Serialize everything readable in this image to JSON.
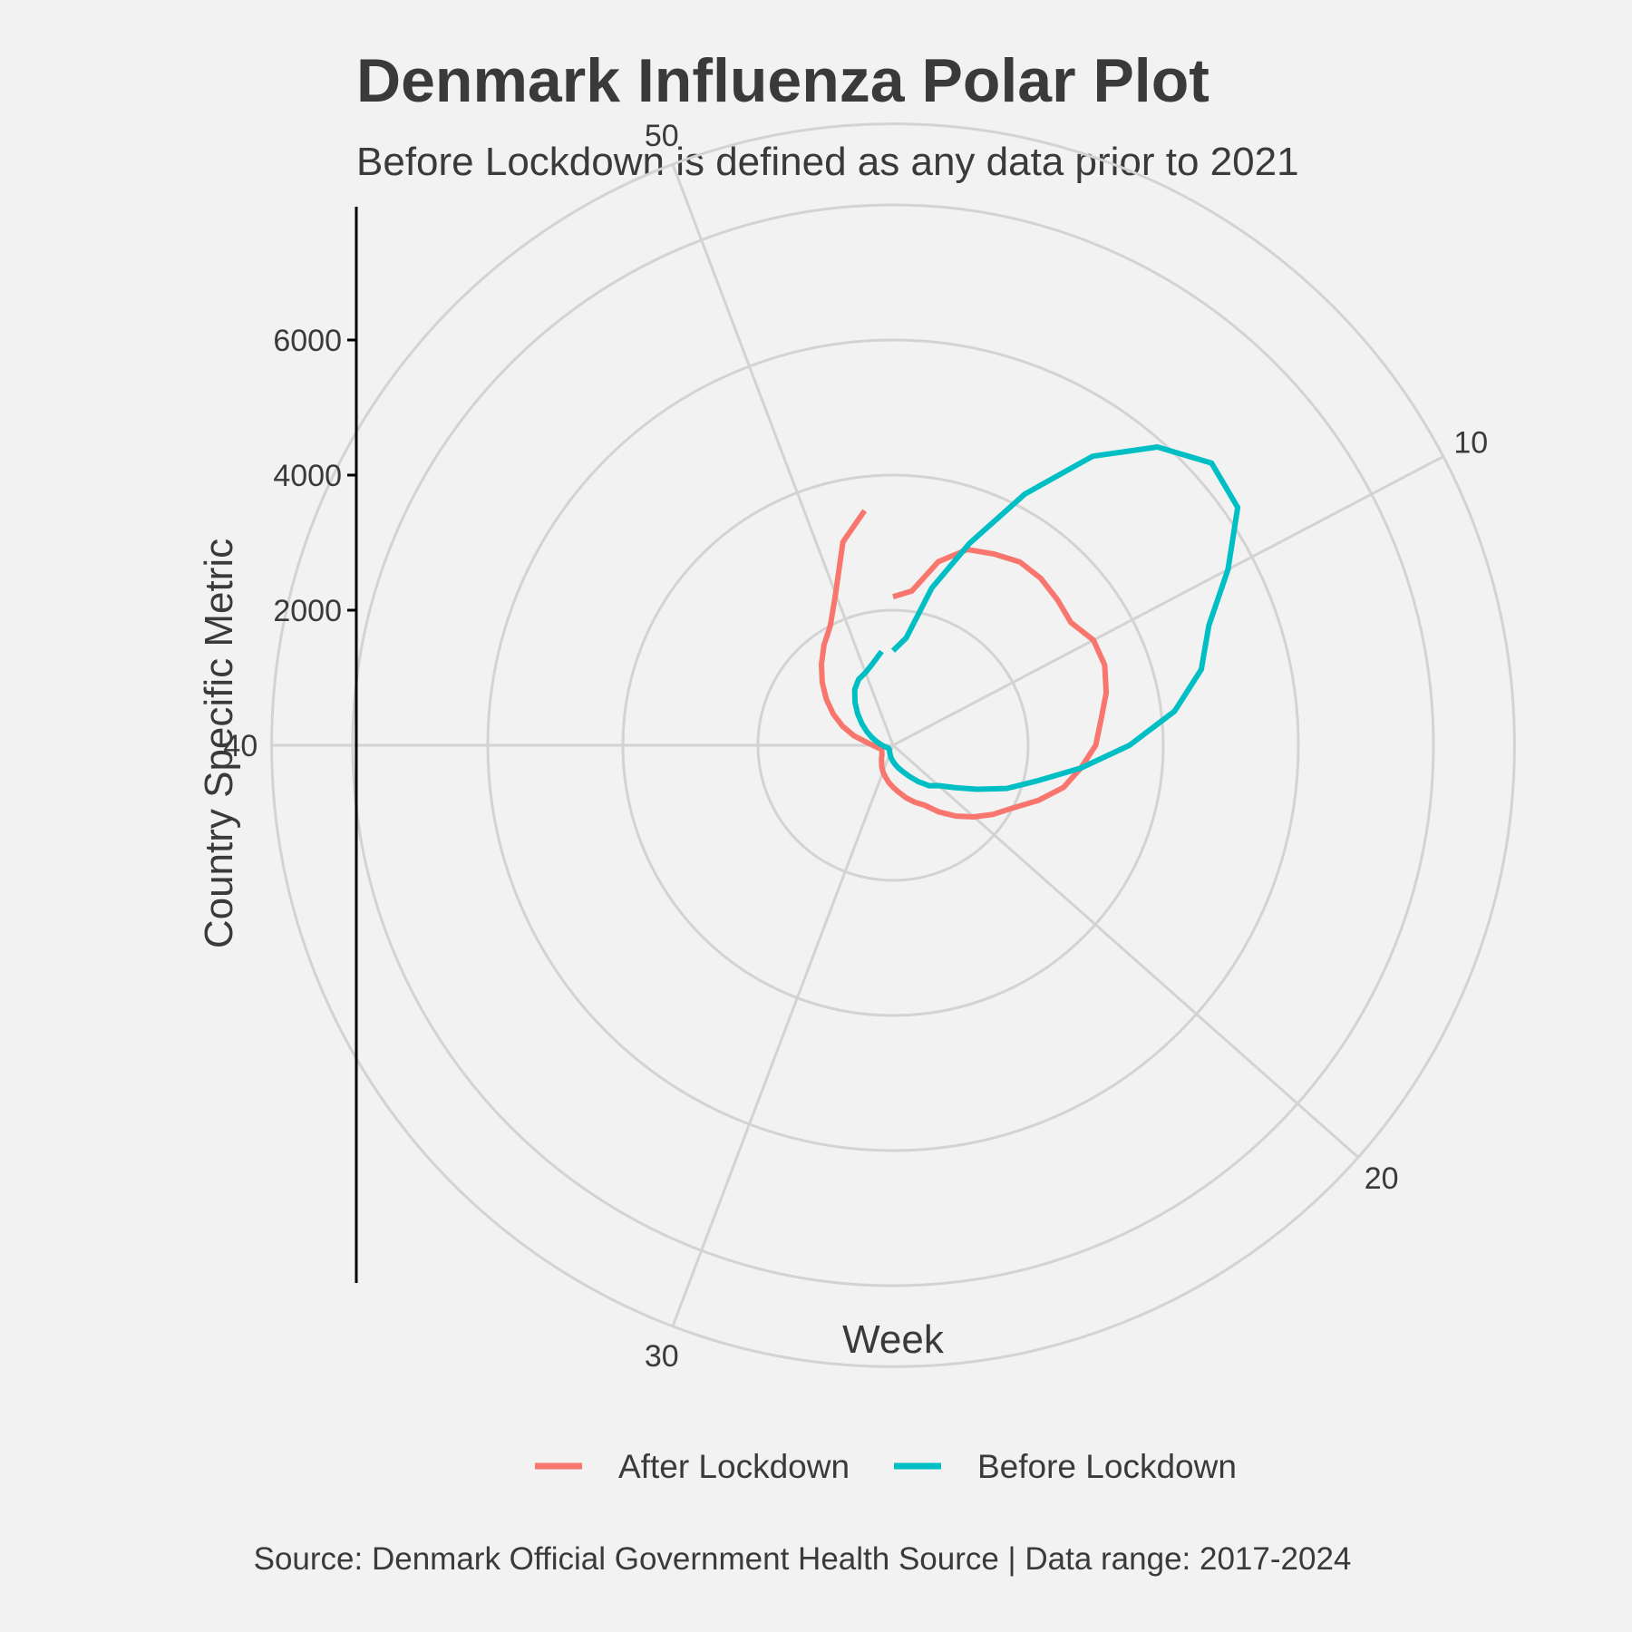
{
  "chart_data": {
    "type": "line",
    "coord": "polar",
    "title": "Denmark Influenza Polar Plot",
    "subtitle": "Before Lockdown is defined as any data prior to 2021",
    "xlabel": "Week",
    "ylabel": "Country Specific Metric",
    "caption": "Source: Denmark Official Government Health Source | Data range: 2017-2024",
    "theta_range": [
      1,
      53
    ],
    "theta_ticks": [
      10,
      20,
      30,
      40,
      50
    ],
    "r_ticks": [
      2000,
      4000,
      6000
    ],
    "r_grid": [
      0,
      2000,
      4000,
      6000,
      8000,
      9200
    ],
    "grid": true,
    "legend_position": "bottom",
    "x": [
      1,
      2,
      3,
      4,
      5,
      6,
      7,
      8,
      9,
      10,
      11,
      12,
      13,
      14,
      15,
      16,
      17,
      18,
      19,
      20,
      21,
      22,
      23,
      24,
      25,
      26,
      27,
      28,
      29,
      30,
      31,
      32,
      33,
      34,
      35,
      36,
      37,
      38,
      39,
      40,
      41,
      42,
      43,
      44,
      45,
      46,
      47,
      48,
      49,
      50,
      51,
      52
    ],
    "series": [
      {
        "name": "After Lockdown",
        "color": "#f8766d",
        "values": [
          2200,
          2300,
          2800,
          3100,
          3200,
          3300,
          3300,
          3250,
          3200,
          3350,
          3350,
          3250,
          3100,
          3000,
          2800,
          2600,
          2300,
          2000,
          1800,
          1600,
          1400,
          1200,
          1000,
          900,
          800,
          700,
          620,
          550,
          480,
          420,
          360,
          300,
          260,
          220,
          200,
          190,
          180,
          200,
          240,
          300,
          400,
          600,
          800,
          1000,
          1200,
          1400,
          1600,
          1800,
          2000,
          2400,
          3100,
          3500
        ]
      },
      {
        "name": "Before Lockdown",
        "color": "#00bfc4",
        "values": [
          1400,
          1600,
          2400,
          3200,
          4200,
          5200,
          5900,
          6300,
          6200,
          5600,
          5000,
          4700,
          4200,
          3500,
          2800,
          2200,
          1800,
          1400,
          1100,
          900,
          800,
          650,
          520,
          420,
          350,
          290,
          240,
          200,
          160,
          130,
          110,
          95,
          85,
          80,
          80,
          85,
          95,
          110,
          130,
          160,
          200,
          260,
          340,
          440,
          560,
          700,
          850,
          1000,
          1100,
          1150,
          1250,
          1400
        ]
      }
    ]
  }
}
